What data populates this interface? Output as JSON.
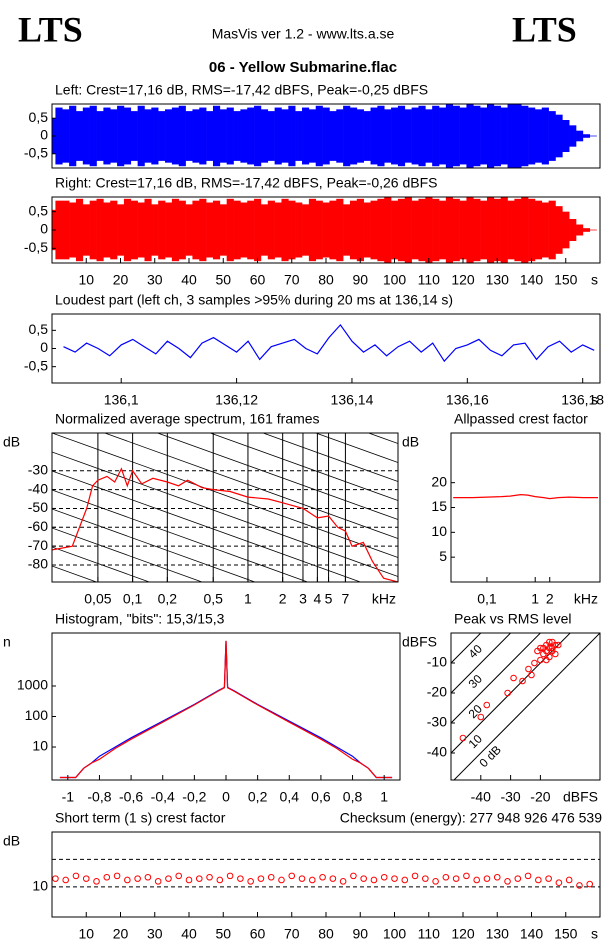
{
  "header": {
    "left_logo": "LTS",
    "title": "MasVis ver 1.2 - www.lts.a.se",
    "right_logo": "LTS",
    "file": "06 - Yellow Submarine.flac"
  },
  "chart_data": [
    {
      "type": "waveform",
      "title": "Left: Crest=17,16 dB, RMS=-17,42 dBFS, Peak=-0,25 dBFS",
      "color": "#0000ff",
      "x": [
        0,
        2,
        4,
        6,
        8,
        10,
        12,
        14,
        16,
        18,
        20,
        22,
        24,
        26,
        28,
        30,
        32,
        34,
        36,
        38,
        40,
        42,
        44,
        46,
        48,
        50,
        52,
        54,
        56,
        58,
        60,
        62,
        64,
        66,
        68,
        70,
        72,
        74,
        76,
        78,
        80,
        82,
        84,
        86,
        88,
        90,
        92,
        94,
        96,
        98,
        100,
        102,
        104,
        106,
        108,
        110,
        112,
        114,
        116,
        118,
        120,
        122,
        124,
        126,
        128,
        130,
        132,
        134,
        136,
        138,
        140,
        142,
        144,
        146,
        148,
        150,
        152,
        154,
        156,
        158
      ],
      "values": [
        0.5,
        0.8,
        0.75,
        0.85,
        0.7,
        0.8,
        0.85,
        0.7,
        0.8,
        0.75,
        0.85,
        0.8,
        0.7,
        0.85,
        0.75,
        0.8,
        0.7,
        0.75,
        0.8,
        0.85,
        0.7,
        0.75,
        0.8,
        0.7,
        0.85,
        0.75,
        0.8,
        0.7,
        0.75,
        0.8,
        0.85,
        0.75,
        0.7,
        0.8,
        0.75,
        0.85,
        0.7,
        0.8,
        0.75,
        0.85,
        0.8,
        0.7,
        0.75,
        0.85,
        0.8,
        0.75,
        0.7,
        0.8,
        0.85,
        0.75,
        0.8,
        0.85,
        0.75,
        0.8,
        0.85,
        0.75,
        0.85,
        0.8,
        0.9,
        0.85,
        0.8,
        0.9,
        0.85,
        0.8,
        0.9,
        0.85,
        0.8,
        0.9,
        0.9,
        0.85,
        0.8,
        0.75,
        0.8,
        0.7,
        0.6,
        0.45,
        0.3,
        0.15,
        0.05,
        0.01
      ],
      "xlim": [
        0,
        160
      ],
      "ylim": [
        -0.9,
        0.9
      ],
      "yticks": [
        {
          "value": 0.5,
          "label": "0,5"
        },
        0,
        {
          "value": -0.5,
          "label": "-0,5"
        }
      ]
    },
    {
      "type": "waveform",
      "title": "Right: Crest=17,16 dB, RMS=-17,42 dBFS, Peak=-0,26 dBFS",
      "color": "#ff0000",
      "x": [
        0,
        2,
        4,
        6,
        8,
        10,
        12,
        14,
        16,
        18,
        20,
        22,
        24,
        26,
        28,
        30,
        32,
        34,
        36,
        38,
        40,
        42,
        44,
        46,
        48,
        50,
        52,
        54,
        56,
        58,
        60,
        62,
        64,
        66,
        68,
        70,
        72,
        74,
        76,
        78,
        80,
        82,
        84,
        86,
        88,
        90,
        92,
        94,
        96,
        98,
        100,
        102,
        104,
        106,
        108,
        110,
        112,
        114,
        116,
        118,
        120,
        122,
        124,
        126,
        128,
        130,
        132,
        134,
        136,
        138,
        140,
        142,
        144,
        146,
        148,
        150,
        152,
        154,
        156,
        158
      ],
      "values": [
        0.55,
        0.8,
        0.8,
        0.75,
        0.85,
        0.7,
        0.8,
        0.85,
        0.75,
        0.8,
        0.7,
        0.85,
        0.8,
        0.75,
        0.85,
        0.7,
        0.8,
        0.75,
        0.85,
        0.8,
        0.7,
        0.8,
        0.85,
        0.75,
        0.8,
        0.7,
        0.85,
        0.8,
        0.75,
        0.8,
        0.85,
        0.7,
        0.8,
        0.75,
        0.85,
        0.8,
        0.75,
        0.7,
        0.85,
        0.8,
        0.75,
        0.8,
        0.85,
        0.7,
        0.8,
        0.85,
        0.75,
        0.8,
        0.85,
        0.9,
        0.8,
        0.85,
        0.9,
        0.8,
        0.85,
        0.9,
        0.85,
        0.8,
        0.9,
        0.85,
        0.8,
        0.9,
        0.85,
        0.8,
        0.9,
        0.85,
        0.9,
        0.8,
        0.85,
        0.9,
        0.85,
        0.8,
        0.75,
        0.8,
        0.65,
        0.5,
        0.3,
        0.15,
        0.05,
        0.01
      ],
      "xlim": [
        0,
        160
      ],
      "ylim": [
        -0.9,
        0.9
      ],
      "yticks": [
        {
          "value": 0.5,
          "label": "0,5"
        },
        0,
        {
          "value": -0.5,
          "label": "-0,5"
        }
      ],
      "xticks": [
        10,
        20,
        30,
        40,
        50,
        60,
        70,
        80,
        90,
        100,
        110,
        120,
        130,
        140,
        150
      ],
      "xlabel": "s"
    },
    {
      "type": "line",
      "title": "Loudest part (left  ch, 3 samples >95% during 20 ms at 136,14 s)",
      "color": "#0000ff",
      "x": [
        136.09,
        136.092,
        136.094,
        136.096,
        136.098,
        136.1,
        136.102,
        136.104,
        136.106,
        136.108,
        136.11,
        136.112,
        136.114,
        136.116,
        136.118,
        136.12,
        136.122,
        136.124,
        136.126,
        136.128,
        136.13,
        136.132,
        136.134,
        136.136,
        136.138,
        136.14,
        136.142,
        136.144,
        136.146,
        136.148,
        136.15,
        136.152,
        136.154,
        136.156,
        136.158,
        136.16,
        136.162,
        136.164,
        136.166,
        136.168,
        136.17,
        136.172,
        136.174,
        136.176,
        136.178,
        136.18,
        136.182
      ],
      "values": [
        0.05,
        -0.1,
        0.15,
        0.0,
        -0.2,
        0.1,
        0.25,
        0.05,
        -0.15,
        0.2,
        0.0,
        -0.25,
        0.15,
        0.3,
        0.1,
        -0.1,
        0.2,
        -0.3,
        0.05,
        0.15,
        0.25,
        0.0,
        -0.15,
        0.3,
        0.65,
        0.2,
        -0.1,
        0.1,
        -0.2,
        0.05,
        0.2,
        -0.1,
        0.15,
        -0.35,
        0.0,
        0.1,
        0.25,
        -0.05,
        -0.2,
        0.1,
        0.15,
        -0.3,
        0.05,
        0.2,
        -0.1,
        0.1,
        -0.05
      ],
      "xlim": [
        136.088,
        136.183
      ],
      "ylim": [
        -0.95,
        0.95
      ],
      "yticks": [
        {
          "value": 0.5,
          "label": "0,5"
        },
        0,
        {
          "value": -0.5,
          "label": "-0,5"
        }
      ],
      "xticks": [
        {
          "value": 136.1,
          "label": "136,1"
        },
        {
          "value": 136.12,
          "label": "136,12"
        },
        {
          "value": 136.14,
          "label": "136,14"
        },
        {
          "value": 136.16,
          "label": "136,16"
        },
        {
          "value": 136.18,
          "label": "136,18"
        }
      ],
      "xlabel": "s"
    },
    {
      "type": "line",
      "title": "Normalized average spectrum, 161 frames",
      "ylabel": "dB",
      "xlabel": "kHz",
      "color": "#ff0000",
      "xlog": true,
      "grid": true,
      "x": [
        0.02,
        0.03,
        0.04,
        0.045,
        0.05,
        0.06,
        0.07,
        0.08,
        0.09,
        0.1,
        0.12,
        0.15,
        0.2,
        0.25,
        0.3,
        0.4,
        0.5,
        0.7,
        1,
        1.5,
        2,
        3,
        4,
        5,
        6,
        7,
        8,
        10,
        12,
        15,
        20
      ],
      "values": [
        -72,
        -70,
        -50,
        -38,
        -35,
        -33,
        -36,
        -29,
        -38,
        -30,
        -37,
        -34,
        -36,
        -38,
        -35,
        -39,
        -40,
        -41,
        -44,
        -45,
        -47,
        -50,
        -55,
        -54,
        -60,
        -62,
        -70,
        -68,
        -78,
        -87,
        -89
      ],
      "xlim": [
        0.02,
        20
      ],
      "ylim": [
        -89,
        -10
      ],
      "yticks": [
        -30,
        -40,
        -50,
        -60,
        -70,
        -80
      ],
      "xticks": [
        {
          "value": 0.05,
          "label": "0,05"
        },
        {
          "value": 0.1,
          "label": "0,1"
        },
        {
          "value": 0.2,
          "label": "0,2"
        },
        {
          "value": 0.5,
          "label": "0,5"
        },
        1,
        2,
        3,
        4,
        5,
        7
      ]
    },
    {
      "type": "line",
      "title": "Allpassed crest factor",
      "ylabel": "dB",
      "xlabel": "kHz",
      "color": "#ff0000",
      "xlog": true,
      "x": [
        0.02,
        0.05,
        0.1,
        0.2,
        0.3,
        0.5,
        0.7,
        1,
        1.5,
        2,
        3,
        5,
        10,
        20
      ],
      "values": [
        17,
        17,
        17.1,
        17.2,
        17.3,
        17.6,
        17.5,
        17.2,
        17,
        16.8,
        17,
        17.1,
        17,
        17
      ],
      "xlim": [
        0.018,
        22
      ],
      "ylim": [
        0,
        30
      ],
      "yticks": [
        20,
        15,
        10,
        5
      ],
      "xticks": [
        {
          "value": 0.1,
          "label": "0,1"
        },
        1,
        2
      ]
    },
    {
      "type": "line",
      "title": "Histogram, \"bits\": 15,3/15,3",
      "ylabel": "n",
      "ylog": true,
      "x": [
        -1.05,
        -0.95,
        -0.9,
        -0.85,
        -0.8,
        -0.7,
        -0.6,
        -0.4,
        -0.2,
        -0.05,
        -0.01,
        0,
        0.01,
        0.05,
        0.2,
        0.4,
        0.6,
        0.7,
        0.8,
        0.85,
        0.9,
        0.95,
        1.05
      ],
      "series": [
        {
          "color": "#0000ff",
          "values": [
            1,
            1,
            2,
            3,
            5,
            10,
            20,
            70,
            250,
            700,
            900,
            30000,
            900,
            700,
            250,
            70,
            20,
            10,
            5,
            3,
            2,
            1,
            1
          ]
        },
        {
          "color": "#ff0000",
          "values": [
            1,
            1,
            2,
            3,
            4,
            9,
            18,
            65,
            240,
            680,
            880,
            30000,
            880,
            680,
            240,
            65,
            18,
            9,
            4,
            3,
            2,
            1,
            1
          ]
        }
      ],
      "xlim": [
        -1.1,
        1.1
      ],
      "ylim": [
        0.83,
        54500
      ],
      "yticks": [
        10,
        100,
        1000
      ],
      "xticks": [
        -1,
        {
          "value": -0.8,
          "label": "-0,8"
        },
        {
          "value": -0.6,
          "label": "-0,6"
        },
        {
          "value": -0.4,
          "label": "-0,4"
        },
        {
          "value": -0.2,
          "label": "-0,2"
        },
        0,
        {
          "value": 0.2,
          "label": "0,2"
        },
        {
          "value": 0.4,
          "label": "0,4"
        },
        {
          "value": 0.6,
          "label": "0,6"
        },
        {
          "value": 0.8,
          "label": "0,8"
        },
        1
      ]
    },
    {
      "type": "scatter",
      "title": "Peak vs RMS level",
      "ylabel": "dBFS",
      "xlabel": "dBFS",
      "color": "#ff0000",
      "x": [
        -21,
        -20,
        -19,
        -18,
        -17,
        -16,
        -15,
        -14,
        -17,
        -18,
        -16,
        -15,
        -19,
        -20,
        -22,
        -24,
        -23,
        -26,
        -29,
        -31,
        -38,
        -40,
        -46,
        -16,
        -18,
        -17
      ],
      "values": [
        -6,
        -5,
        -7,
        -4,
        -5,
        -3,
        -4,
        -4,
        -8,
        -9,
        -6,
        -7,
        -5,
        -9,
        -10,
        -12,
        -14,
        -16,
        -15,
        -20,
        -24,
        -28,
        -35,
        -5,
        -6,
        -3
      ],
      "xlim": [
        -50,
        0
      ],
      "ylim": [
        -49,
        0
      ],
      "xticks": [
        -40,
        -30,
        -20
      ],
      "yticks": [
        -10,
        -20,
        -30,
        -40
      ],
      "crest_lines": [
        {
          "value": 0,
          "label": "0 dB"
        },
        10,
        20,
        30,
        40
      ]
    },
    {
      "type": "scatter",
      "title": "Short term (1 s) crest factor",
      "subtitle": "Checksum (energy):  277 948 926 476 539",
      "ylabel": "dB",
      "color": "#ff0000",
      "x": [
        1,
        4,
        7,
        10,
        13,
        16,
        19,
        22,
        25,
        28,
        31,
        34,
        37,
        40,
        43,
        46,
        49,
        52,
        55,
        58,
        61,
        64,
        67,
        70,
        73,
        76,
        79,
        82,
        85,
        88,
        91,
        94,
        97,
        100,
        103,
        106,
        109,
        112,
        115,
        118,
        121,
        124,
        127,
        130,
        133,
        136,
        139,
        142,
        145,
        148,
        151,
        154,
        157
      ],
      "values": [
        13,
        12.5,
        14,
        13,
        12,
        13.5,
        14,
        12.5,
        13,
        13.5,
        12,
        13,
        14,
        12.5,
        13,
        13.5,
        12.5,
        14,
        13,
        12,
        13,
        13.5,
        12.5,
        14,
        13,
        12.5,
        13.5,
        13,
        12,
        14,
        13,
        12.5,
        13.5,
        13,
        12.5,
        14,
        13,
        12,
        13.5,
        13,
        14,
        12.5,
        13,
        13.5,
        12,
        13,
        14,
        12.5,
        13,
        11.5,
        12.5,
        10.5,
        11
      ],
      "xlim": [
        0,
        160
      ],
      "ylim": [
        -1,
        30
      ],
      "yticks": [
        10
      ],
      "hlines": [
        20
      ],
      "xticks": [
        10,
        20,
        30,
        40,
        50,
        60,
        70,
        80,
        90,
        100,
        110,
        120,
        130,
        140,
        150
      ],
      "xlabel": "s"
    }
  ]
}
